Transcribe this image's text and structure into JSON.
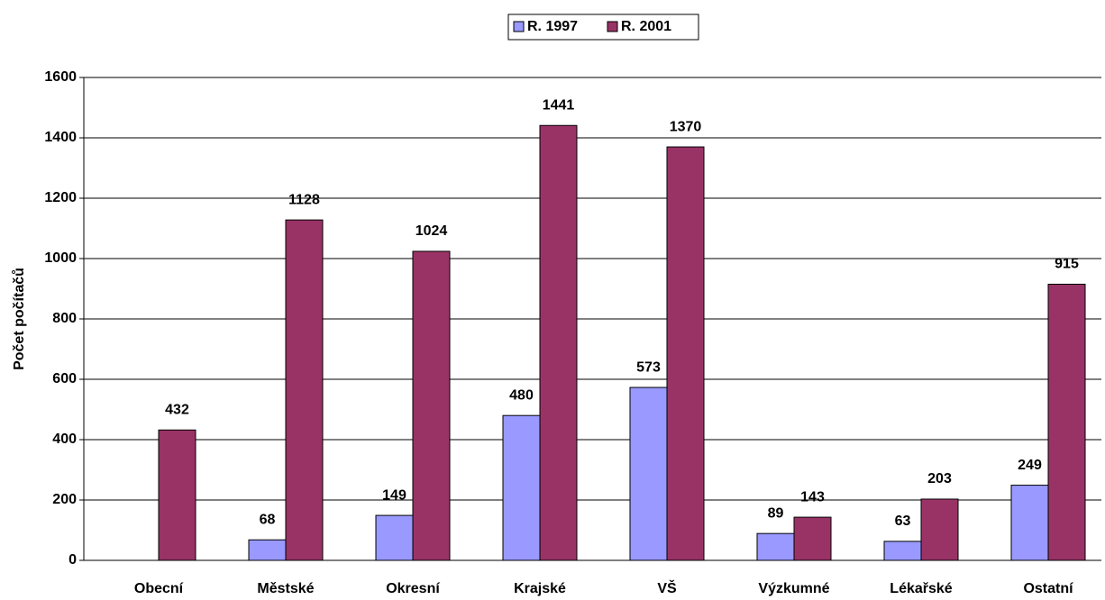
{
  "chart_data": {
    "type": "bar",
    "y_label": "Počet počítačů",
    "categories": [
      "Obecní",
      "Městské",
      "Okresní",
      "Krajské",
      "VŠ",
      "Výzkumné",
      "Lékařské",
      "Ostatní"
    ],
    "series": [
      {
        "name": "R. 1997",
        "color": "#9999ff",
        "values": [
          null,
          68,
          149,
          480,
          573,
          89,
          63,
          249
        ]
      },
      {
        "name": "R. 2001",
        "color": "#993366",
        "values": [
          432,
          1128,
          1024,
          1441,
          1370,
          143,
          203,
          915
        ]
      }
    ],
    "ylim": [
      0,
      1600
    ],
    "yticks": [
      0,
      200,
      400,
      600,
      800,
      1000,
      1200,
      1400,
      1600
    ],
    "grid": true,
    "legend": "top"
  }
}
